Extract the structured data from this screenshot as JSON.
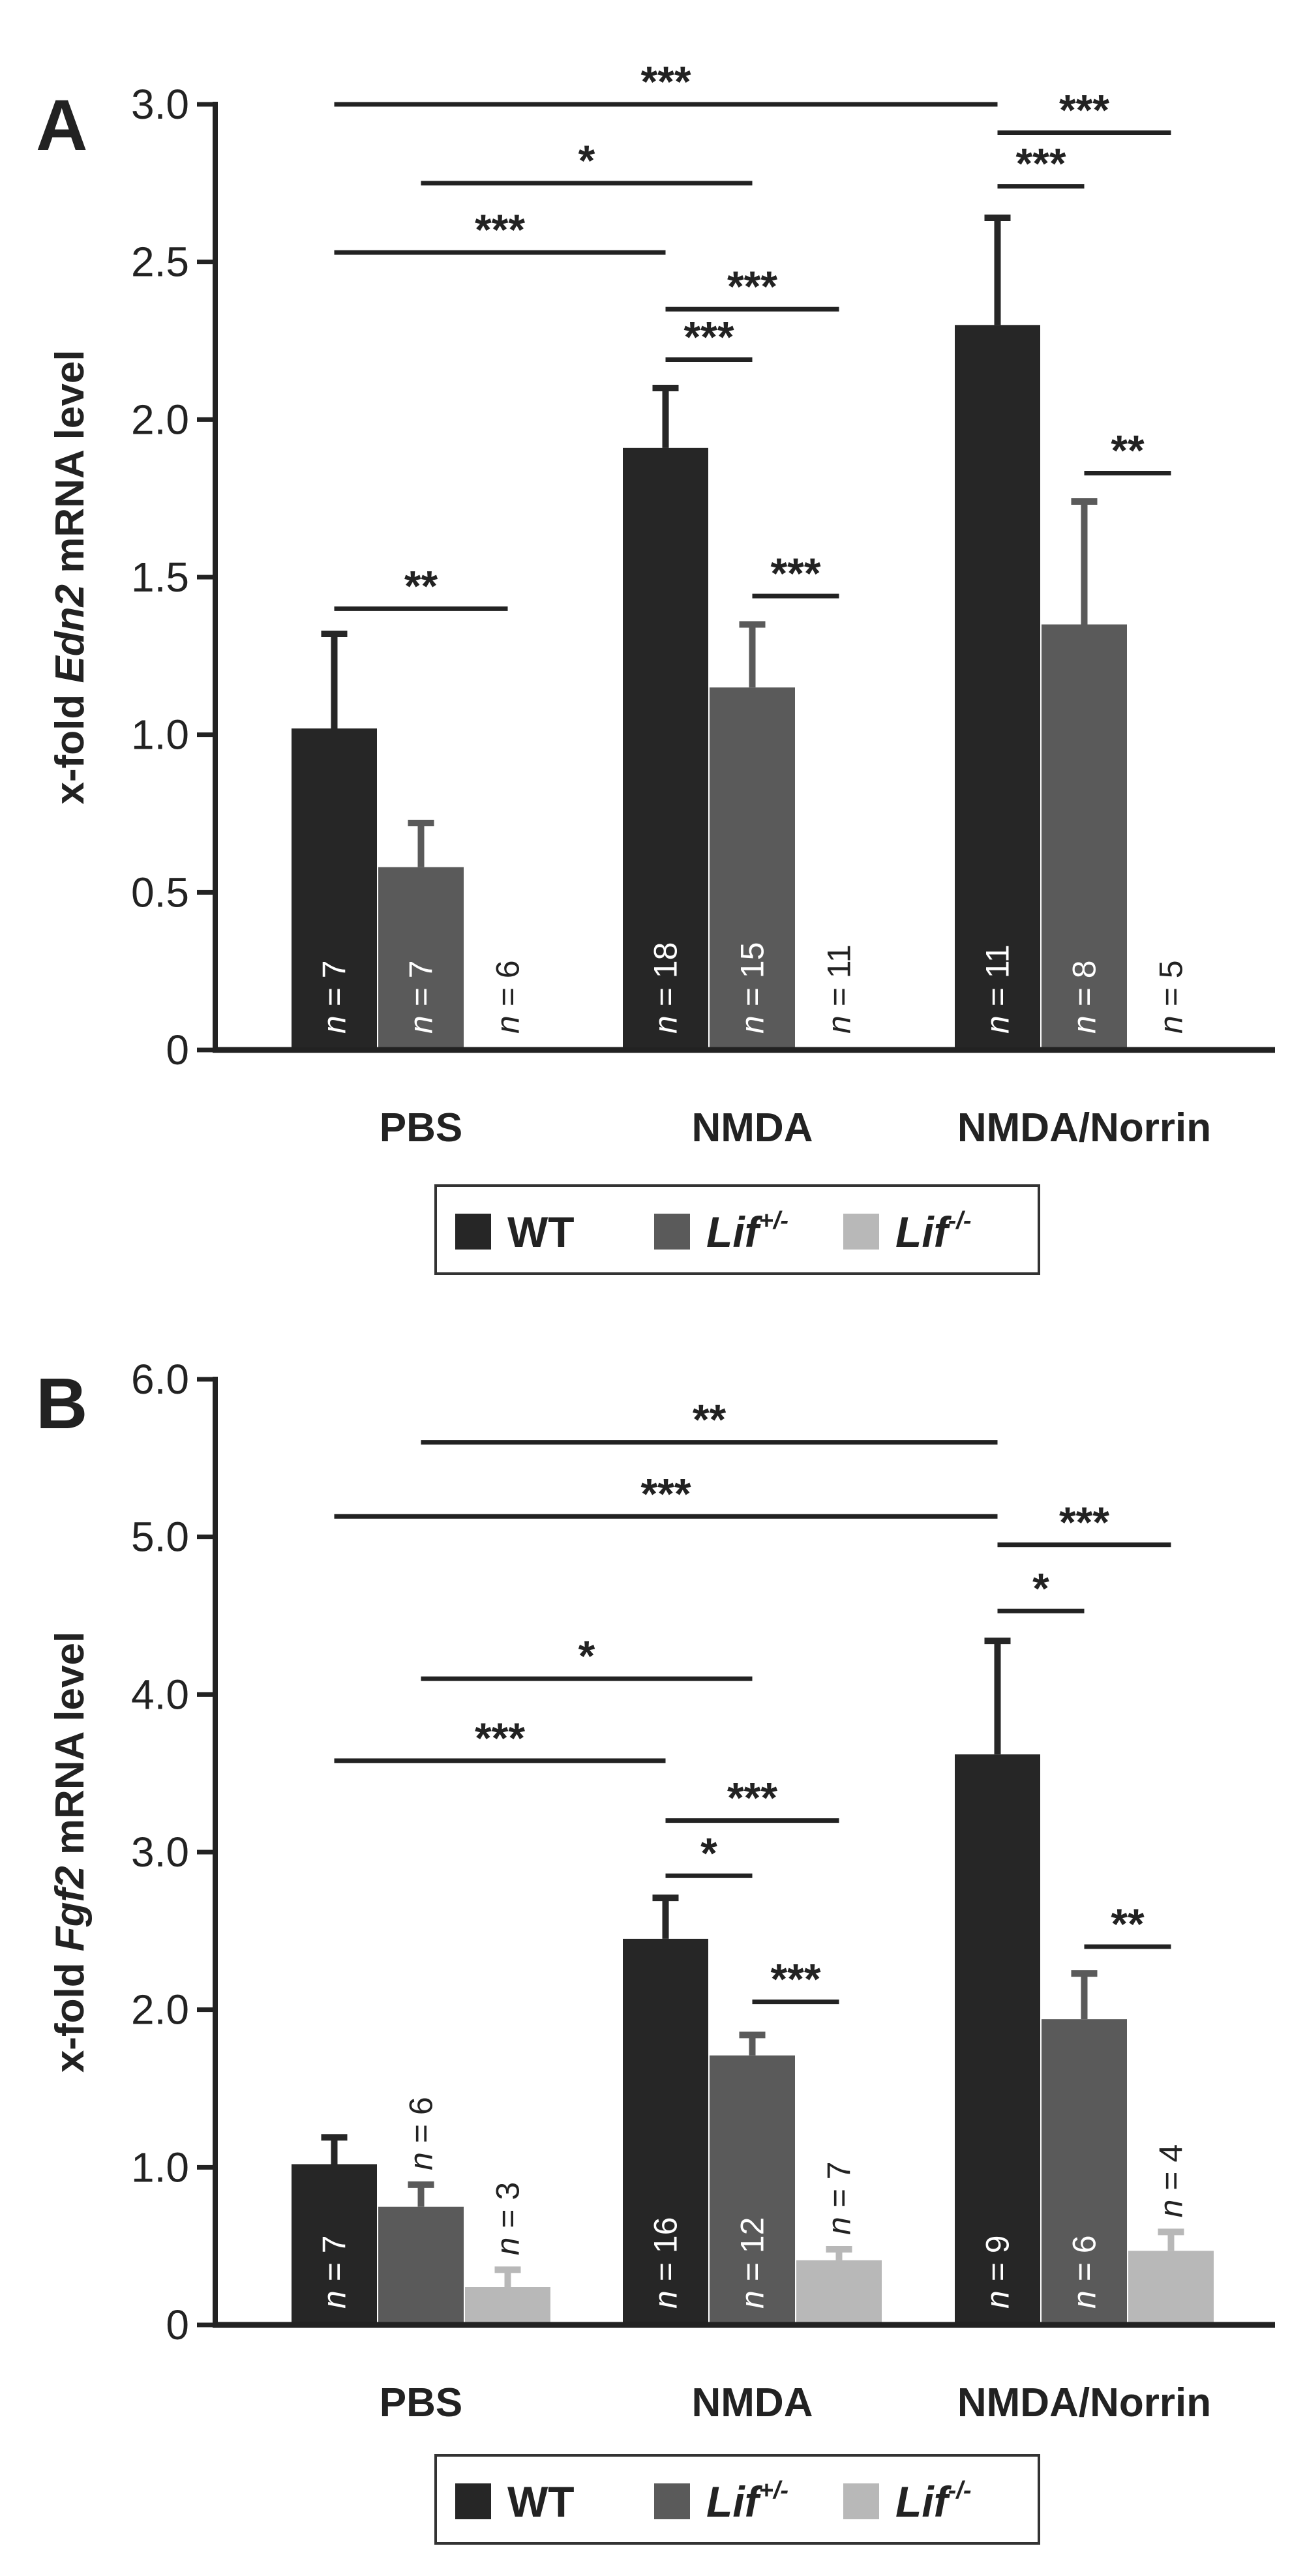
{
  "chart_data": [
    {
      "type": "bar",
      "panel": "A",
      "ylabel": {
        "prefix": "x-fold ",
        "gene": "Edn2",
        "suffix": " mRNA level"
      },
      "ylim": [
        0,
        3.0
      ],
      "yticks": [
        0,
        0.5,
        1.0,
        1.5,
        2.0,
        2.5,
        3.0
      ],
      "ytick_labels": [
        "0",
        "0.5",
        "1.0",
        "1.5",
        "2.0",
        "2.5",
        "3.0"
      ],
      "categories": [
        "PBS",
        "NMDA",
        "NMDA/Norrin"
      ],
      "series": [
        {
          "name": "WT",
          "color": "#262626",
          "values": [
            1.02,
            1.91,
            2.3
          ],
          "errors": [
            0.3,
            0.19,
            0.34
          ],
          "n": [
            7,
            18,
            11
          ]
        },
        {
          "name": "Lif+/-",
          "color": "#5a5a5a",
          "values": [
            0.58,
            1.15,
            1.35
          ],
          "errors": [
            0.14,
            0.2,
            0.39
          ],
          "n": [
            7,
            15,
            8
          ]
        },
        {
          "name": "Lif-/-",
          "color": "#b8b8b8",
          "values": [
            0,
            0,
            0
          ],
          "errors": [
            0,
            0,
            0
          ],
          "n": [
            6,
            11,
            5
          ]
        }
      ],
      "n_prefix": "n",
      "n_sep": " = ",
      "significance": [
        {
          "from": [
            0,
            0
          ],
          "to": [
            2,
            0
          ],
          "level": 3.0,
          "label": "***"
        },
        {
          "from": [
            0,
            1
          ],
          "to": [
            1,
            1
          ],
          "level": 2.75,
          "label": "*"
        },
        {
          "from": [
            0,
            0
          ],
          "to": [
            1,
            0
          ],
          "level": 2.53,
          "label": "***"
        },
        {
          "from": [
            0,
            0
          ],
          "to": [
            0,
            2
          ],
          "level": 1.4,
          "label": "**"
        },
        {
          "from": [
            1,
            0
          ],
          "to": [
            1,
            2
          ],
          "level": 2.35,
          "label": "***"
        },
        {
          "from": [
            1,
            0
          ],
          "to": [
            1,
            1
          ],
          "level": 2.19,
          "label": "***"
        },
        {
          "from": [
            1,
            1
          ],
          "to": [
            1,
            2
          ],
          "level": 1.44,
          "label": "***"
        },
        {
          "from": [
            2,
            0
          ],
          "to": [
            2,
            2
          ],
          "level": 2.91,
          "label": "***"
        },
        {
          "from": [
            2,
            0
          ],
          "to": [
            2,
            1
          ],
          "level": 2.74,
          "label": "***"
        },
        {
          "from": [
            2,
            1
          ],
          "to": [
            2,
            2
          ],
          "level": 1.83,
          "label": "**"
        }
      ]
    },
    {
      "type": "bar",
      "panel": "B",
      "ylabel": {
        "prefix": "x-fold ",
        "gene": "Fgf2",
        "suffix": " mRNA level"
      },
      "ylim": [
        0,
        6.0
      ],
      "yticks": [
        0,
        1.0,
        2.0,
        3.0,
        4.0,
        5.0,
        6.0
      ],
      "ytick_labels": [
        "0",
        "1.0",
        "2.0",
        "3.0",
        "4.0",
        "5.0",
        "6.0"
      ],
      "categories": [
        "PBS",
        "NMDA",
        "NMDA/Norrin"
      ],
      "series": [
        {
          "name": "WT",
          "color": "#262626",
          "values": [
            1.02,
            2.45,
            3.62
          ],
          "errors": [
            0.17,
            0.26,
            0.72
          ],
          "n": [
            7,
            16,
            9
          ]
        },
        {
          "name": "Lif+/-",
          "color": "#5a5a5a",
          "values": [
            0.75,
            1.71,
            1.94
          ],
          "errors": [
            0.14,
            0.13,
            0.29
          ],
          "n": [
            6,
            12,
            6
          ]
        },
        {
          "name": "Lif-/-",
          "color": "#b8b8b8",
          "values": [
            0.24,
            0.41,
            0.47
          ],
          "errors": [
            0.11,
            0.07,
            0.12
          ],
          "n": [
            3,
            7,
            4
          ]
        }
      ],
      "n_prefix": "n",
      "n_sep": " = ",
      "significance": [
        {
          "from": [
            0,
            1
          ],
          "to": [
            2,
            0
          ],
          "level": 5.6,
          "label": "**"
        },
        {
          "from": [
            0,
            0
          ],
          "to": [
            2,
            0
          ],
          "level": 5.13,
          "label": "***"
        },
        {
          "from": [
            0,
            1
          ],
          "to": [
            1,
            1
          ],
          "level": 4.1,
          "label": "*"
        },
        {
          "from": [
            0,
            0
          ],
          "to": [
            1,
            0
          ],
          "level": 3.58,
          "label": "***"
        },
        {
          "from": [
            1,
            0
          ],
          "to": [
            1,
            2
          ],
          "level": 3.2,
          "label": "***"
        },
        {
          "from": [
            1,
            0
          ],
          "to": [
            1,
            1
          ],
          "level": 2.85,
          "label": "*"
        },
        {
          "from": [
            1,
            1
          ],
          "to": [
            1,
            2
          ],
          "level": 2.05,
          "label": "***"
        },
        {
          "from": [
            2,
            0
          ],
          "to": [
            2,
            2
          ],
          "level": 4.95,
          "label": "***"
        },
        {
          "from": [
            2,
            0
          ],
          "to": [
            2,
            1
          ],
          "level": 4.53,
          "label": "*"
        },
        {
          "from": [
            2,
            1
          ],
          "to": [
            2,
            2
          ],
          "level": 2.4,
          "label": "**"
        }
      ]
    }
  ],
  "legend": {
    "items": [
      {
        "name": "WT",
        "base": "WT",
        "sup": "",
        "italic": false,
        "color": "#262626"
      },
      {
        "name": "Lif+/-",
        "base": "Lif",
        "sup": "+/-",
        "italic": true,
        "color": "#5a5a5a"
      },
      {
        "name": "Lif-/-",
        "base": "Lif",
        "sup": "-/-",
        "italic": true,
        "color": "#b8b8b8"
      }
    ]
  }
}
